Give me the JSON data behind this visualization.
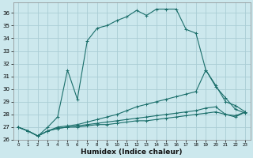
{
  "xlabel": "Humidex (Indice chaleur)",
  "background_color": "#cce8ed",
  "grid_color": "#aacdd4",
  "line_color": "#1a6e6a",
  "xlim": [
    -0.5,
    23.5
  ],
  "ylim": [
    26,
    36.8
  ],
  "xticks": [
    0,
    1,
    2,
    3,
    4,
    5,
    6,
    7,
    8,
    9,
    10,
    11,
    12,
    13,
    14,
    15,
    16,
    17,
    18,
    19,
    20,
    21,
    22,
    23
  ],
  "yticks": [
    26,
    27,
    28,
    29,
    30,
    31,
    32,
    33,
    34,
    35,
    36
  ],
  "line1_y": [
    27.0,
    26.7,
    26.3,
    27.0,
    27.8,
    31.5,
    29.2,
    33.8,
    34.8,
    35.0,
    35.4,
    35.7,
    36.2,
    35.8,
    36.3,
    36.3,
    36.3,
    34.7,
    34.4,
    31.5,
    30.2,
    29.3,
    28.4,
    28.1
  ],
  "line2_y": [
    27.0,
    26.7,
    26.3,
    26.7,
    27.0,
    27.1,
    27.2,
    27.4,
    27.6,
    27.8,
    28.0,
    28.3,
    28.6,
    28.8,
    29.0,
    29.2,
    29.4,
    29.6,
    29.8,
    31.5,
    30.3,
    29.0,
    28.7,
    28.2
  ],
  "line3_y": [
    27.0,
    26.7,
    26.3,
    26.7,
    26.9,
    27.0,
    27.1,
    27.2,
    27.3,
    27.4,
    27.5,
    27.6,
    27.7,
    27.8,
    27.9,
    28.0,
    28.1,
    28.2,
    28.3,
    28.5,
    28.6,
    28.0,
    27.8,
    28.2
  ],
  "line4_y": [
    27.0,
    26.7,
    26.3,
    26.7,
    26.9,
    27.0,
    27.0,
    27.1,
    27.2,
    27.2,
    27.3,
    27.4,
    27.5,
    27.5,
    27.6,
    27.7,
    27.8,
    27.9,
    28.0,
    28.1,
    28.2,
    28.0,
    27.9,
    28.2
  ]
}
